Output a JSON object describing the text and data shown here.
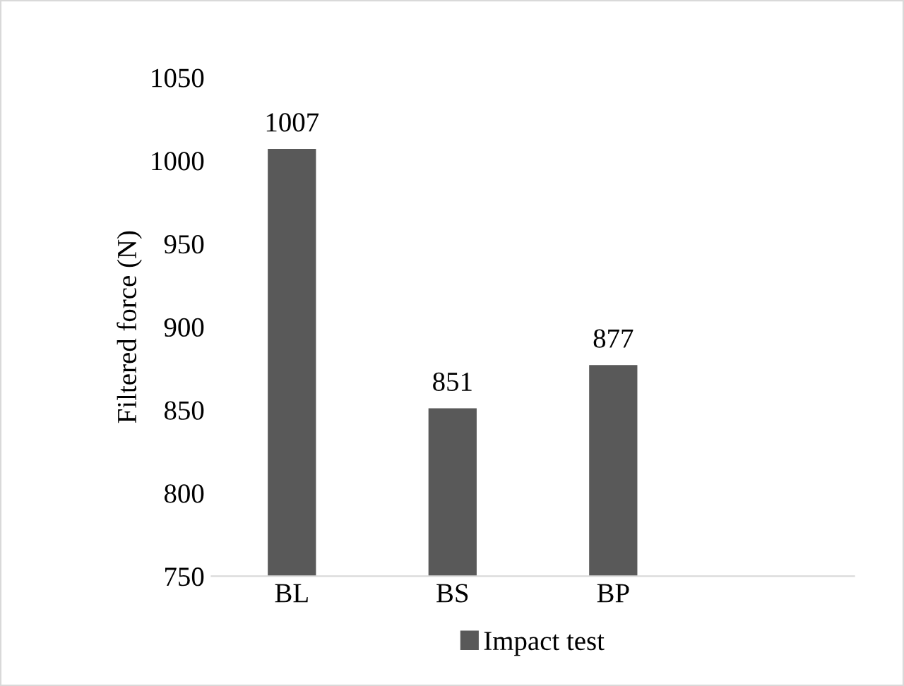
{
  "chart_data": {
    "type": "bar",
    "ylabel": "Filtered force (N)",
    "categories": [
      "BL",
      "BS",
      "BP",
      null
    ],
    "series": [
      {
        "name": "Impact test",
        "color": "#595959",
        "values": [
          1007,
          851,
          877,
          null
        ]
      }
    ],
    "ylim": [
      750,
      1050
    ],
    "yticks": [
      750,
      800,
      850,
      900,
      950,
      1000,
      1050
    ],
    "data_labels": true,
    "legend": "bottom",
    "grid": false
  }
}
